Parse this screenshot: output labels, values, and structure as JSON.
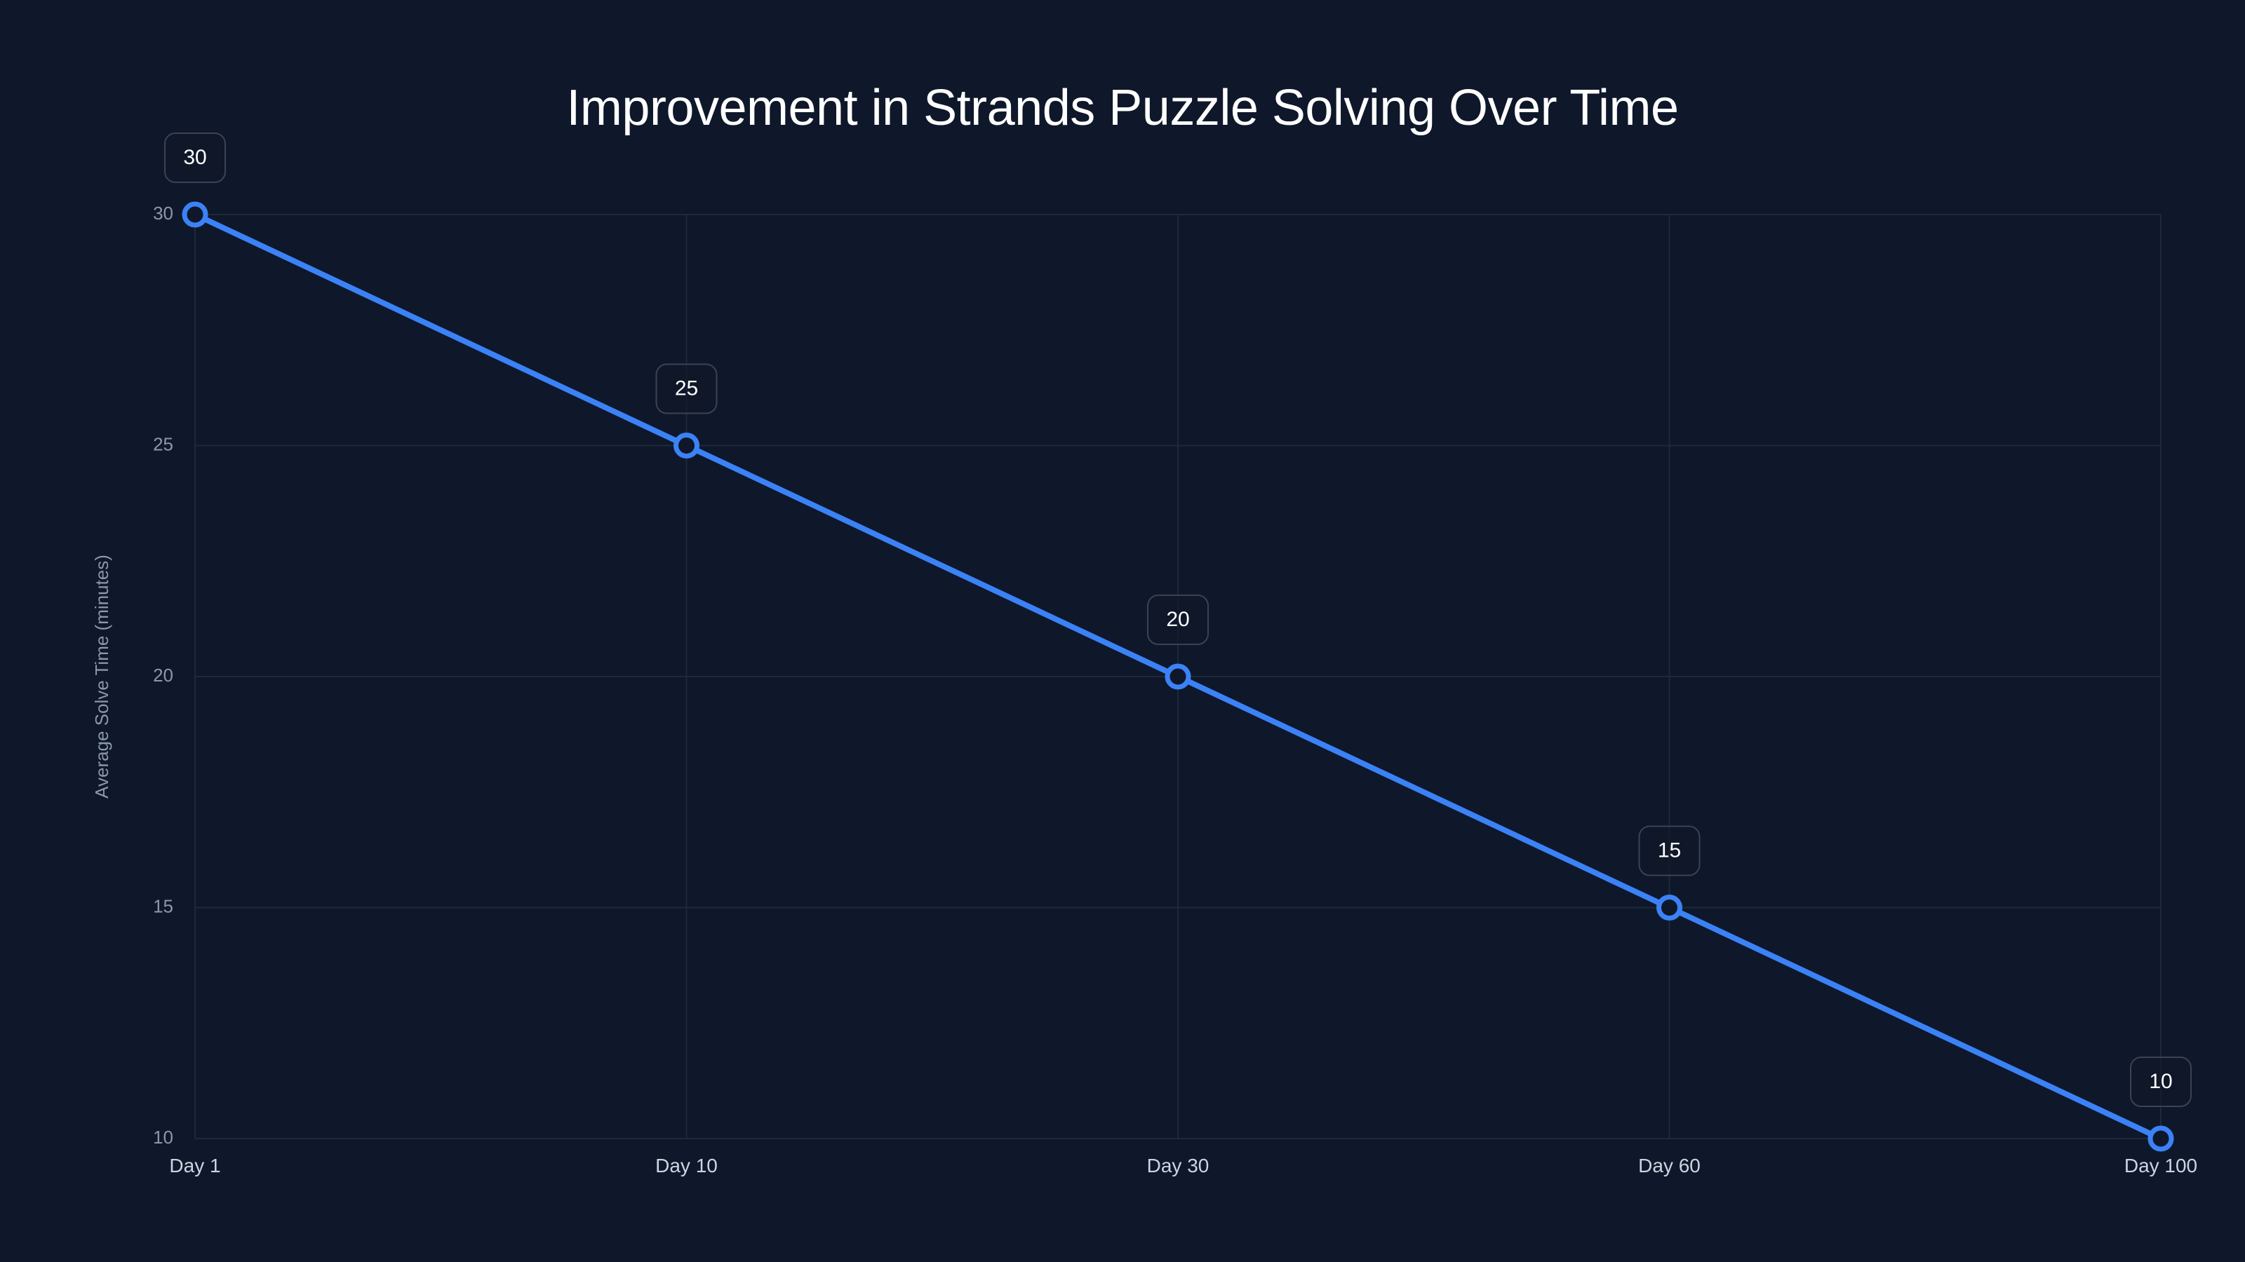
{
  "chart_data": {
    "type": "line",
    "title": "Improvement in Strands Puzzle Solving Over Time",
    "xlabel": "",
    "ylabel": "Average Solve Time (minutes)",
    "categories": [
      "Day 1",
      "Day 10",
      "Day 30",
      "Day 60",
      "Day 100"
    ],
    "series": [
      {
        "name": "Average Solve Time",
        "values": [
          30,
          25,
          20,
          15,
          10
        ],
        "color": "#3b82f6"
      }
    ],
    "ylim": [
      10,
      30
    ],
    "yticks": [
      10,
      15,
      20,
      25,
      30
    ],
    "grid": true,
    "legend": "none",
    "data_labels": [
      "30",
      "25",
      "20",
      "15",
      "10"
    ]
  },
  "colors": {
    "background": "#0f172a",
    "line": "#3b82f6",
    "grid": "#1e293b"
  }
}
